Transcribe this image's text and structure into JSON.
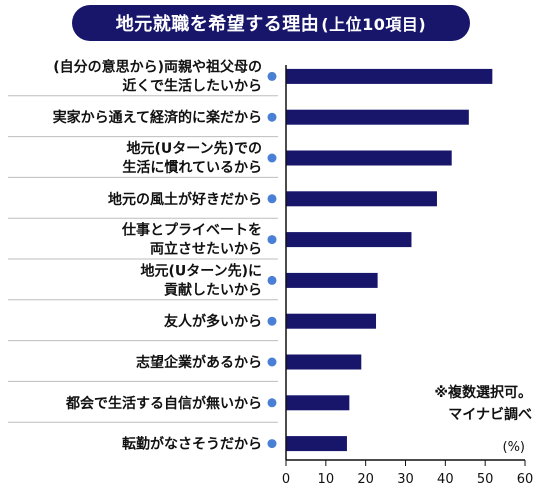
{
  "header": {
    "title": "地元就職を希望する理由",
    "title_suffix": "(上位10項目)"
  },
  "note": {
    "line1": "※複数選択可。",
    "line2": "マイナビ調べ"
  },
  "colors": {
    "bar": "#17166b",
    "bullet": "#4a7fd6",
    "divider": "#bdbdbd",
    "title_bg": "#17166b"
  },
  "chart_data": {
    "type": "bar",
    "orientation": "horizontal",
    "categories": [
      [
        "(自分の意思から)両親や祖父母の",
        "近くで生活したいから"
      ],
      [
        "実家から通えて経済的に楽だから"
      ],
      [
        "地元(Uターン先)での",
        "生活に慣れているから"
      ],
      [
        "地元の風土が好きだから"
      ],
      [
        "仕事とプライベートを",
        "両立させたいから"
      ],
      [
        "地元(Uターン先)に",
        "貢献したいから"
      ],
      [
        "友人が多いから"
      ],
      [
        "志望企業があるから"
      ],
      [
        "都会で生活する自信が無いから"
      ],
      [
        "転勤がなさそうだから"
      ]
    ],
    "values": [
      51.8,
      45.9,
      41.6,
      37.9,
      31.5,
      23.0,
      22.6,
      18.9,
      15.9,
      15.3
    ],
    "xlim": [
      0,
      60
    ],
    "xticks": [
      0,
      10,
      20,
      30,
      40,
      50,
      60
    ],
    "unit": "(%)",
    "grid": false
  }
}
